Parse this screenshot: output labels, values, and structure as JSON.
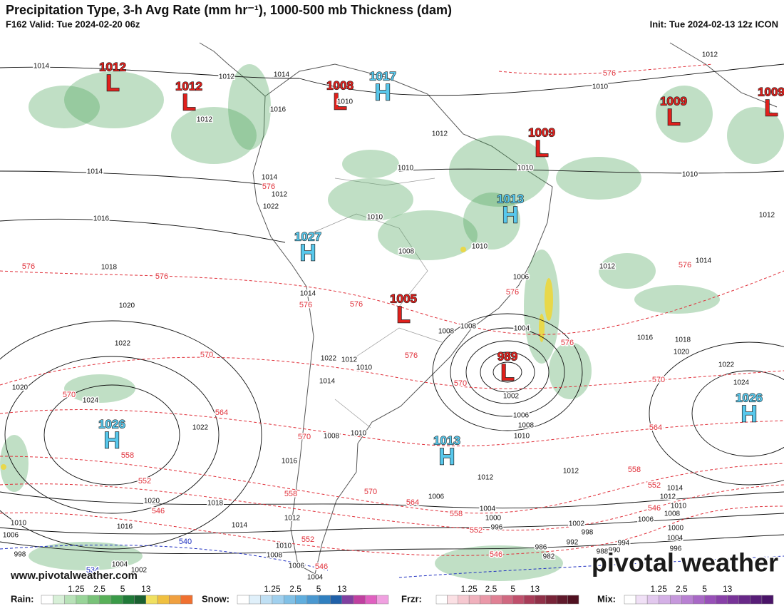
{
  "header": {
    "title": "Precipitation Type, 3-h Avg Rate (mm hr⁻¹), 1000-500 mb Thickness (dam)",
    "valid": "F162 Valid: Tue 2024-02-20 06z",
    "init": "Init: Tue 2024-02-13 12z ICON"
  },
  "centers": [
    {
      "type": "L",
      "value": "1012"
    },
    {
      "type": "L",
      "value": "1012"
    },
    {
      "type": "L",
      "value": "1008"
    },
    {
      "type": "H",
      "value": "1017"
    },
    {
      "type": "L",
      "value": "1009"
    },
    {
      "type": "L",
      "value": "1009"
    },
    {
      "type": "L",
      "value": "1009"
    },
    {
      "type": "H",
      "value": "1013"
    },
    {
      "type": "H",
      "value": "1027"
    },
    {
      "type": "L",
      "value": "1005"
    },
    {
      "type": "L",
      "value": "989"
    },
    {
      "type": "H",
      "value": "1013"
    },
    {
      "type": "H",
      "value": "1026"
    },
    {
      "type": "H",
      "value": "1026"
    }
  ],
  "isobar_labels": [
    "1014",
    "1012",
    "1014",
    "1012",
    "1014",
    "1016",
    "1018",
    "1020",
    "1022",
    "1020",
    "1024",
    "1022",
    "1020",
    "1018",
    "1016",
    "1014",
    "1010",
    "1006",
    "998",
    "1004",
    "1002",
    "1016",
    "1014",
    "1012",
    "1022",
    "1010",
    "1012",
    "1010",
    "1010",
    "1008",
    "1010",
    "1010",
    "1010",
    "1010",
    "1012",
    "1012",
    "1012",
    "1014",
    "1006",
    "1004",
    "1008",
    "1008",
    "1010",
    "1012",
    "1022",
    "1014",
    "1002",
    "1006",
    "1008",
    "1010",
    "1010",
    "1008",
    "1016",
    "1012",
    "1012",
    "1016",
    "1018",
    "1020",
    "1022",
    "1024",
    "1014",
    "1012",
    "1010",
    "1008",
    "1006",
    "1004",
    "1006",
    "1000",
    "996",
    "1002",
    "998",
    "1000",
    "1004",
    "992",
    "994",
    "996",
    "986",
    "982",
    "988",
    "990",
    "1004",
    "1006",
    "1008",
    "1010",
    "1012",
    "1014"
  ],
  "thickness_labels": [
    "576",
    "576",
    "576",
    "576",
    "576",
    "576",
    "576",
    "576",
    "576",
    "570",
    "570",
    "570",
    "570",
    "570",
    "570",
    "564",
    "564",
    "564",
    "558",
    "558",
    "558",
    "558",
    "552",
    "552",
    "552",
    "552",
    "546",
    "546",
    "546",
    "546",
    "576",
    "540",
    "534"
  ],
  "legend": [
    {
      "name": "Rain:",
      "ticks": [
        "1.25",
        "2.5",
        "5",
        "13"
      ]
    },
    {
      "name": "Snow:",
      "ticks": [
        "1.25",
        "2.5",
        "5",
        "13"
      ]
    },
    {
      "name": "Frzr:",
      "ticks": [
        "1.25",
        "2.5",
        "5",
        "13"
      ]
    },
    {
      "name": "Mix:",
      "ticks": [
        "1.25",
        "2.5",
        "5",
        "13"
      ]
    }
  ],
  "watermark": "pivotal weather",
  "url": "www.pivotalweather.com"
}
